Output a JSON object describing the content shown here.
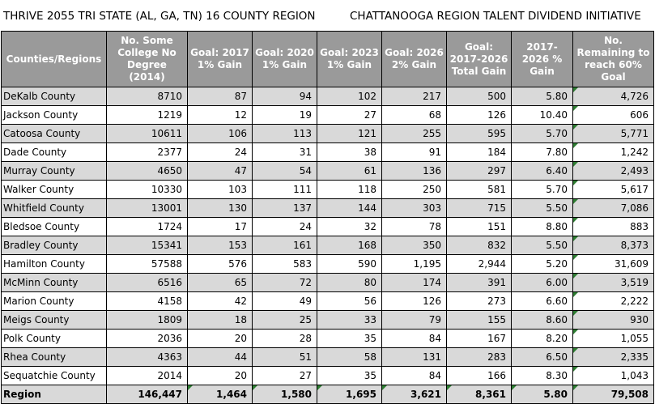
{
  "header": {
    "left_title": "THRIVE 2055 TRI STATE (AL, GA, TN) 16 COUNTY REGION",
    "right_title": "CHATTANOOGA REGION TALENT DIVIDEND INITIATIVE"
  },
  "columns": [
    "Counties/Regions",
    "No. Some College No Degree (2014)",
    "Goal: 2017 1% Gain",
    "Goal: 2020 1% Gain",
    "Goal: 2023 1% Gain",
    "Goal: 2026 2% Gain",
    "Goal: 2017-2026 Total Gain",
    "2017-2026 % Gain",
    "No. Remaining to reach 60% Goal"
  ],
  "rows": [
    [
      "DeKalb County",
      "8710",
      "87",
      "94",
      "102",
      "217",
      "500",
      "5.80",
      "4,726"
    ],
    [
      "Jackson County",
      "1219",
      "12",
      "19",
      "27",
      "68",
      "126",
      "10.40",
      "606"
    ],
    [
      "Catoosa County",
      "10611",
      "106",
      "113",
      "121",
      "255",
      "595",
      "5.70",
      "5,771"
    ],
    [
      "Dade County",
      "2377",
      "24",
      "31",
      "38",
      "91",
      "184",
      "7.80",
      "1,242"
    ],
    [
      "Murray County",
      "4650",
      "47",
      "54",
      "61",
      "136",
      "297",
      "6.40",
      "2,493"
    ],
    [
      "Walker County",
      "10330",
      "103",
      "111",
      "118",
      "250",
      "581",
      "5.70",
      "5,617"
    ],
    [
      "Whitfield County",
      "13001",
      "130",
      "137",
      "144",
      "303",
      "715",
      "5.50",
      "7,086"
    ],
    [
      "Bledsoe County",
      "1724",
      "17",
      "24",
      "32",
      "78",
      "151",
      "8.80",
      "883"
    ],
    [
      "Bradley County",
      "15341",
      "153",
      "161",
      "168",
      "350",
      "832",
      "5.50",
      "8,373"
    ],
    [
      "Hamilton County",
      "57588",
      "576",
      "583",
      "590",
      "1,195",
      "2,944",
      "5.20",
      "31,609"
    ],
    [
      "McMinn County",
      "6516",
      "65",
      "72",
      "80",
      "174",
      "391",
      "6.00",
      "3,519"
    ],
    [
      "Marion County",
      "4158",
      "42",
      "49",
      "56",
      "126",
      "273",
      "6.60",
      "2,222"
    ],
    [
      "Meigs County",
      "1809",
      "18",
      "25",
      "33",
      "79",
      "155",
      "8.60",
      "930"
    ],
    [
      "Polk County",
      "2036",
      "20",
      "28",
      "35",
      "84",
      "167",
      "8.20",
      "1,055"
    ],
    [
      "Rhea County",
      "4363",
      "44",
      "51",
      "58",
      "131",
      "283",
      "6.50",
      "2,335"
    ],
    [
      "Sequatchie County",
      "2014",
      "20",
      "27",
      "35",
      "84",
      "166",
      "8.30",
      "1,043"
    ]
  ],
  "total": [
    "Region",
    "146,447",
    "1,464",
    "1,580",
    "1,695",
    "3,621",
    "8,361",
    "5.80",
    "79,508"
  ],
  "colors": {
    "header_bg": "#9a9a9a",
    "stripe": "#d9d9d9",
    "error_flag": "#2e7d32"
  }
}
